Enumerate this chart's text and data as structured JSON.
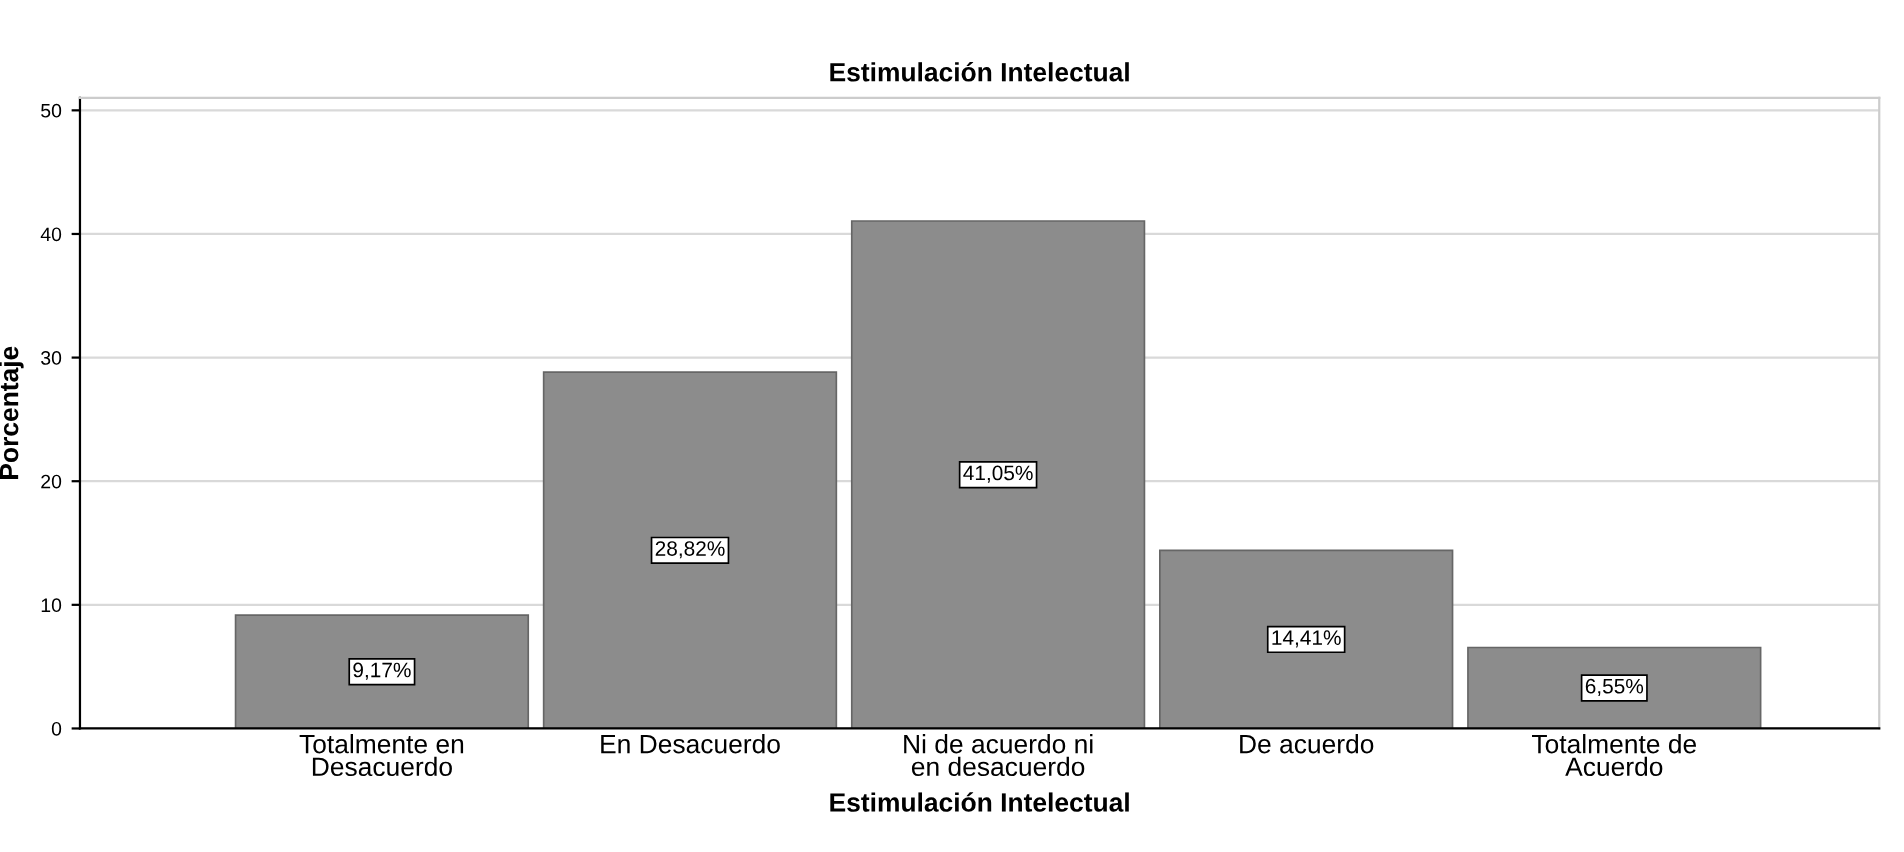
{
  "chart_data": {
    "type": "bar",
    "title": "Estimulación Intelectual",
    "xlabel": "Estimulación Intelectual",
    "ylabel": "Porcentaje",
    "categories": [
      "Totalmente en\nDesacuerdo",
      "En Desacuerdo",
      "Ni de acuerdo ni\nen desacuerdo",
      "De acuerdo",
      "Totalmente de\nAcuerdo"
    ],
    "values": [
      9.17,
      28.82,
      41.05,
      14.41,
      6.55
    ],
    "value_labels": [
      "9,17%",
      "28,82%",
      "41,05%",
      "14,41%",
      "6,55%"
    ],
    "color": "#8c8c8c",
    "ylim": [
      0,
      51
    ],
    "yticks": [
      0,
      10,
      20,
      30,
      40,
      50
    ],
    "grid": "y"
  }
}
